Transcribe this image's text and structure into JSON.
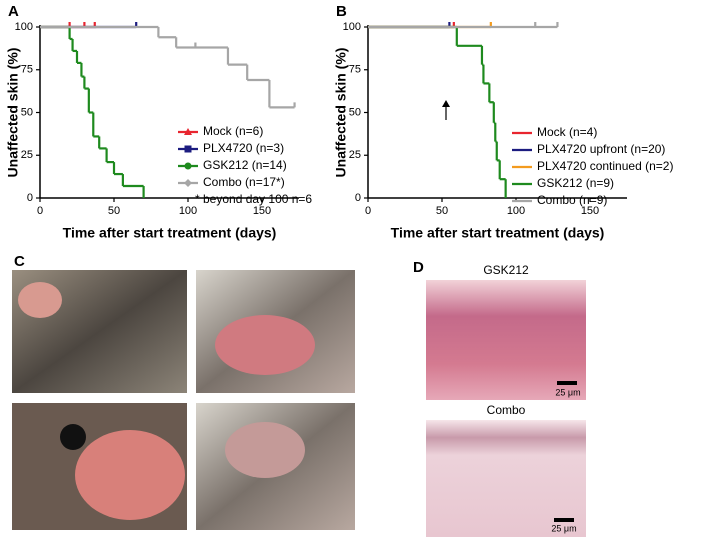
{
  "chart_data": [
    {
      "type": "step",
      "panel_label": "A",
      "x_label": "Time after start treatment (days)",
      "y_label": "Unaffected skin (%)",
      "xlim": [
        0,
        175
      ],
      "xticks": [
        0,
        50,
        100,
        150
      ],
      "ylim": [
        0,
        100
      ],
      "yticks": [
        0,
        25,
        50,
        75,
        100
      ],
      "annotation": "* beyond day 100 n=6",
      "legend": "lower right",
      "series": [
        {
          "name": "Mock (n=6)",
          "color": "#e8252f",
          "marker": "triangle",
          "x": [
            0,
            38
          ],
          "values": [
            100,
            100
          ],
          "censor": [
            20,
            30,
            37
          ]
        },
        {
          "name": "PLX4720 (n=3)",
          "color": "#1c1c80",
          "marker": "square",
          "x": [
            0,
            65
          ],
          "values": [
            100,
            100
          ],
          "censor": [
            65
          ]
        },
        {
          "name": "GSK212 (n=14)",
          "color": "#1e8a1e",
          "marker": "circle",
          "x": [
            0,
            20,
            22,
            25,
            28,
            30,
            33,
            36,
            40,
            45,
            50,
            56,
            70
          ],
          "values": [
            100,
            93,
            86,
            79,
            71,
            64,
            50,
            36,
            29,
            21,
            14,
            7,
            0
          ],
          "censor": []
        },
        {
          "name": "Combo (n=17*)",
          "color": "#a6a6a6",
          "marker": "diamond",
          "x": [
            0,
            80,
            92,
            127,
            140,
            155,
            172
          ],
          "values": [
            100,
            94,
            88,
            78,
            69,
            53,
            53
          ],
          "censor": [
            105,
            172
          ]
        }
      ]
    },
    {
      "type": "step",
      "panel_label": "B",
      "x_label": "Time after start treatment (days)",
      "y_label": "Unaffected skin (%)",
      "xlim": [
        0,
        175
      ],
      "xticks": [
        0,
        50,
        100,
        150
      ],
      "ylim": [
        0,
        100
      ],
      "yticks": [
        0,
        25,
        50,
        75,
        100
      ],
      "legend": "lower right",
      "series": [
        {
          "name": "Mock (n=4)",
          "color": "#e8252f",
          "x": [
            0,
            58
          ],
          "values": [
            100,
            100
          ],
          "censor": [
            58
          ]
        },
        {
          "name": "PLX4720 upfront (n=20)",
          "color": "#1c1c80",
          "x": [
            0,
            55
          ],
          "values": [
            100,
            100
          ],
          "censor": [
            55
          ]
        },
        {
          "name": "PLX4720 continued (n=2)",
          "color": "#f39b1e",
          "x": [
            0,
            83
          ],
          "values": [
            100,
            100
          ],
          "censor": [
            83
          ]
        },
        {
          "name": "GSK212 (n=9)",
          "color": "#1e8a1e",
          "x": [
            0,
            60,
            77,
            78,
            82,
            85,
            86,
            87,
            89,
            93
          ],
          "values": [
            100,
            89,
            78,
            67,
            56,
            44,
            33,
            22,
            11,
            0
          ],
          "censor": []
        },
        {
          "name": "Combo (n=9)",
          "color": "#a6a6a6",
          "x": [
            0,
            128
          ],
          "values": [
            100,
            100
          ],
          "censor": [
            113,
            128
          ]
        }
      ]
    }
  ],
  "panels": {
    "C": {
      "label": "C"
    },
    "D": {
      "label": "D",
      "images": [
        {
          "title": "GSK212",
          "scale_bar": "25 μm"
        },
        {
          "title": "Combo",
          "scale_bar": "25 μm"
        }
      ]
    }
  }
}
